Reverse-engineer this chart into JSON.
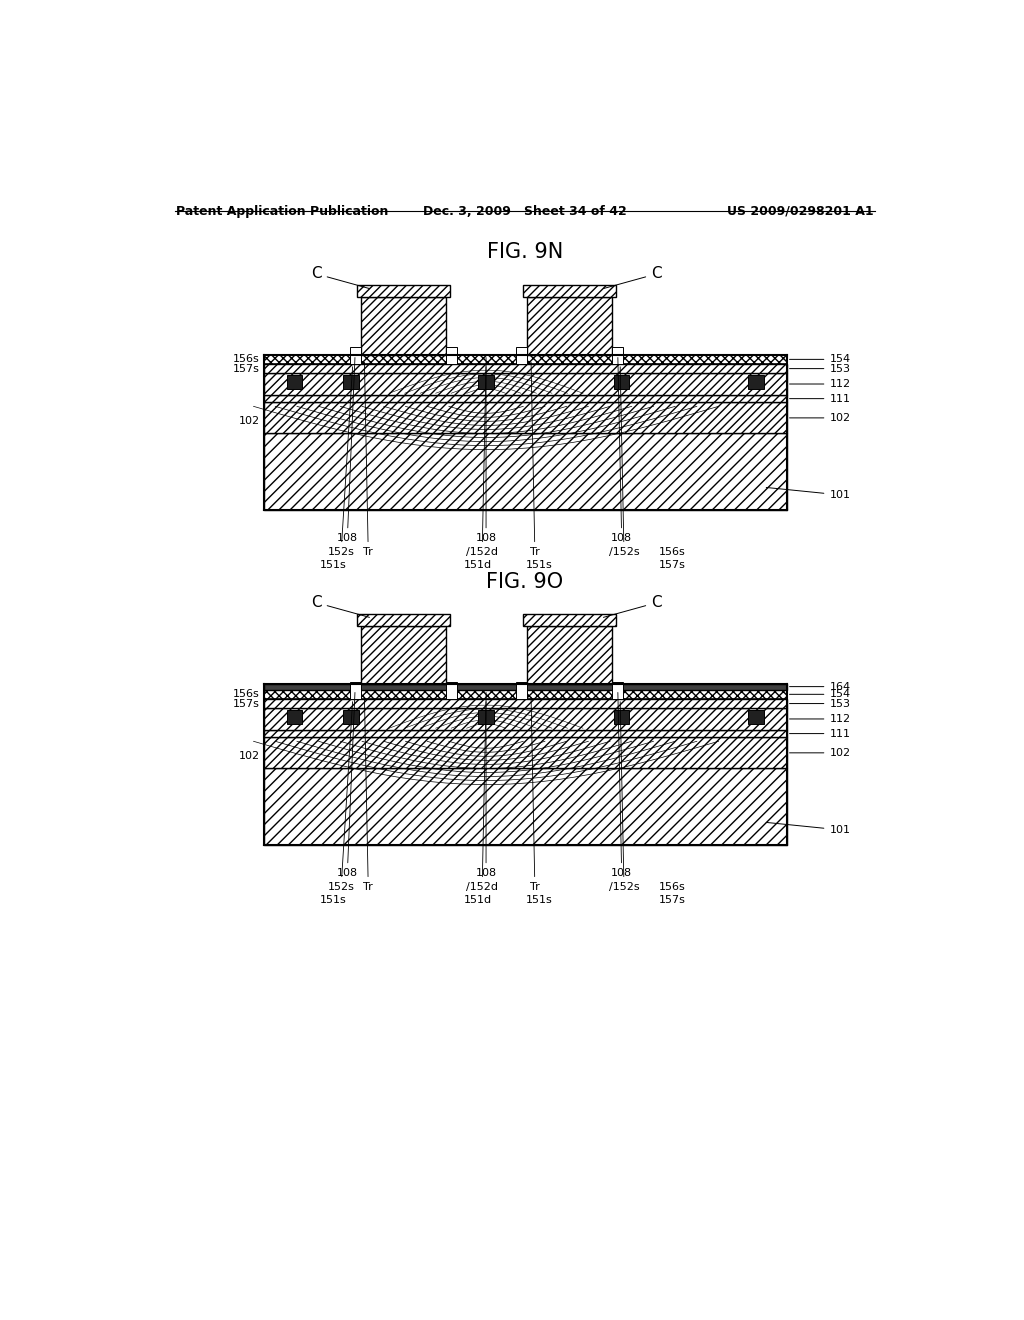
{
  "page_title_left": "Patent Application Publication",
  "page_title_center": "Dec. 3, 2009   Sheet 34 of 42",
  "page_title_right": "US 2009/0298201 A1",
  "fig1_title": "FIG. 9N",
  "fig2_title": "FIG. 9O",
  "bg_color": "#ffffff"
}
